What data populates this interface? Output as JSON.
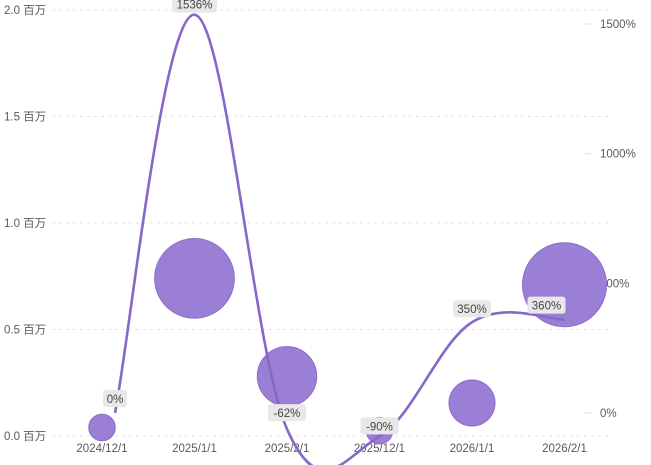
{
  "chart_data": {
    "type": "combo-bubble-line",
    "categories": [
      "2024/12/1",
      "2025/1/1",
      "2025/2/1",
      "2025/12/1",
      "2026/1/1",
      "2026/2/1"
    ],
    "bubble_series": {
      "y_values": [
        0.04,
        0.74,
        0.28,
        0.0,
        0.155,
        0.71
      ],
      "size_values": [
        1,
        9,
        5,
        1,
        3,
        10
      ],
      "color": "#9b7fd6"
    },
    "line_series": {
      "values": [
        0,
        1536,
        -62,
        -90,
        350,
        360
      ],
      "labels": [
        "0%",
        "1536%",
        "-62%",
        "-90%",
        "350%",
        "360%"
      ],
      "color": "#8767c8"
    },
    "y_left": {
      "ticks": [
        0.0,
        0.5,
        1.0,
        1.5,
        2.0
      ],
      "tick_labels": [
        "0.0 百万",
        "0.5 百万",
        "1.0 百万",
        "1.5 百万",
        "2.0 百万"
      ],
      "range": [
        0,
        2.0
      ]
    },
    "y_right": {
      "ticks": [
        0,
        500,
        1000,
        1500
      ],
      "tick_labels": [
        "0%",
        "500%",
        "1000%",
        "1500%"
      ],
      "range": [
        -90,
        1545
      ]
    },
    "grid": true
  }
}
